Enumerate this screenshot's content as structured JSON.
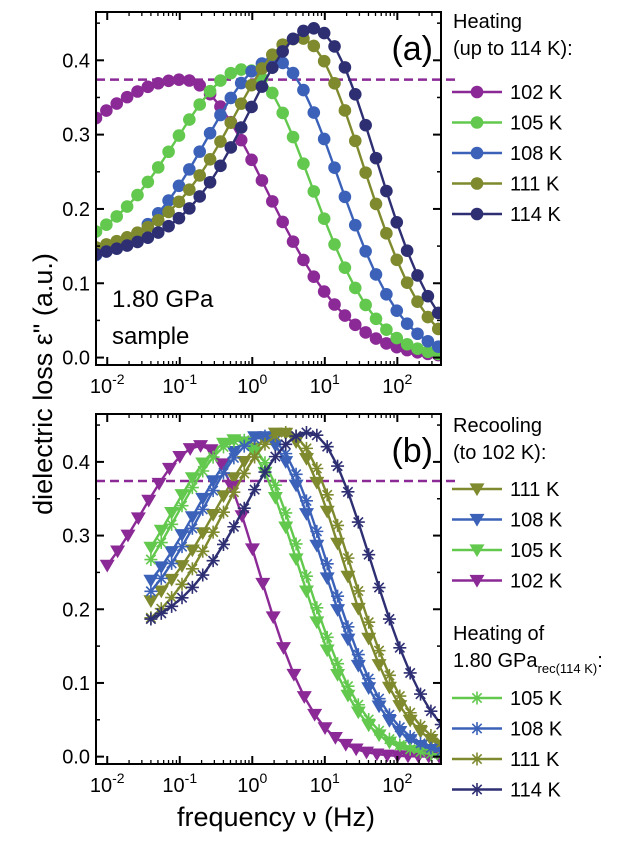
{
  "figure": {
    "ylabel": "dielectric loss ε\" (a.u.)",
    "xlabel": "frequency ν (Hz)"
  },
  "chart_data": [
    {
      "type": "line",
      "panel_label": "(a)",
      "annotation": [
        "1.80 GPa",
        "sample"
      ],
      "xscale": "log",
      "xlim": [
        0.007,
        400
      ],
      "ylim": [
        -0.01,
        0.465
      ],
      "x_ticks": [
        {
          "value": 0.01,
          "base": "10",
          "exp": "-2"
        },
        {
          "value": 0.1,
          "base": "10",
          "exp": "-1"
        },
        {
          "value": 1,
          "base": "10",
          "exp": "0"
        },
        {
          "value": 10,
          "base": "10",
          "exp": "1"
        },
        {
          "value": 100,
          "base": "10",
          "exp": "2"
        }
      ],
      "y_ticks": [
        0.0,
        0.1,
        0.2,
        0.3,
        0.4
      ],
      "y_tick_labels": [
        "0.0",
        "0.1",
        "0.2",
        "0.3",
        "0.4"
      ],
      "reference_line_y": 0.374,
      "reference_color": "#8b2a96",
      "legend_title": [
        "Heating",
        "(up to 114 K):"
      ],
      "legend_position": "right",
      "series": [
        {
          "name": "102 K",
          "marker": "circle",
          "color": "#8b2a96",
          "peak_f": 0.11,
          "peak_y": 0.374,
          "low_f_y": 0.26,
          "sigma": 1.15
        },
        {
          "name": "105 K",
          "marker": "circle",
          "color": "#63c94e",
          "peak_f": 0.8,
          "peak_y": 0.388,
          "low_f_y": 0.17,
          "sigma": 0.9
        },
        {
          "name": "108 K",
          "marker": "circle",
          "color": "#3b62b8",
          "peak_f": 2.0,
          "peak_y": 0.4,
          "low_f_y": 0.155,
          "sigma": 0.88
        },
        {
          "name": "111 K",
          "marker": "circle",
          "color": "#7f8a2e",
          "peak_f": 4.5,
          "peak_y": 0.43,
          "low_f_y": 0.18,
          "sigma": 0.87
        },
        {
          "name": "114 K",
          "marker": "circle",
          "color": "#2e2f73",
          "peak_f": 7.0,
          "peak_y": 0.443,
          "low_f_y": 0.175,
          "sigma": 0.86
        }
      ]
    },
    {
      "type": "line",
      "panel_label": "(b)",
      "xscale": "log",
      "xlim": [
        0.007,
        400
      ],
      "ylim": [
        -0.01,
        0.465
      ],
      "x_ticks": [
        {
          "value": 0.01,
          "base": "10",
          "exp": "-2"
        },
        {
          "value": 0.1,
          "base": "10",
          "exp": "-1"
        },
        {
          "value": 1,
          "base": "10",
          "exp": "0"
        },
        {
          "value": 10,
          "base": "10",
          "exp": "1"
        },
        {
          "value": 100,
          "base": "10",
          "exp": "2"
        }
      ],
      "y_ticks": [
        0.0,
        0.1,
        0.2,
        0.3,
        0.4
      ],
      "y_tick_labels": [
        "0.0",
        "0.1",
        "0.2",
        "0.3",
        "0.4"
      ],
      "reference_line_y": 0.374,
      "reference_color": "#8b2a96",
      "legend_title": [
        "Recooling",
        "(to 102 K):"
      ],
      "legend2_title": "Heating of",
      "legend2_main": "1.80 GPa",
      "legend2_sub": "rec(114 K)",
      "legend2_suffix": ":",
      "legend_position": "right",
      "series": [
        {
          "name": "111 K",
          "marker": "triangle-down",
          "color": "#7f8a2e",
          "peak_f": 2.5,
          "peak_y": 0.44,
          "low_f_y": 0.2,
          "sigma": 0.85,
          "x_start": 0.04
        },
        {
          "name": "108 K",
          "marker": "triangle-down",
          "color": "#3b62b8",
          "peak_f": 1.3,
          "peak_y": 0.435,
          "low_f_y": 0.2,
          "sigma": 0.85,
          "x_start": 0.04
        },
        {
          "name": "105 K",
          "marker": "triangle-down",
          "color": "#63c94e",
          "peak_f": 0.6,
          "peak_y": 0.43,
          "low_f_y": 0.2,
          "sigma": 0.85,
          "x_start": 0.04
        },
        {
          "name": "102 K",
          "marker": "triangle-down",
          "color": "#8b2a96",
          "peak_f": 0.2,
          "peak_y": 0.422,
          "low_f_y": 0.215,
          "sigma": 0.78,
          "x_start": 0.01
        },
        {
          "name": "105 K",
          "group": 2,
          "marker": "asterisk",
          "color": "#63c94e",
          "peak_f": 0.7,
          "peak_y": 0.43,
          "low_f_y": 0.19,
          "sigma": 0.85,
          "x_start": 0.04
        },
        {
          "name": "108 K",
          "group": 2,
          "marker": "asterisk",
          "color": "#3b62b8",
          "peak_f": 1.5,
          "peak_y": 0.435,
          "low_f_y": 0.19,
          "sigma": 0.85,
          "x_start": 0.04
        },
        {
          "name": "111 K",
          "group": 2,
          "marker": "asterisk",
          "color": "#7f8a2e",
          "peak_f": 3.0,
          "peak_y": 0.44,
          "low_f_y": 0.18,
          "sigma": 0.85,
          "x_start": 0.04
        },
        {
          "name": "114 K",
          "group": 2,
          "marker": "asterisk",
          "color": "#2e2f73",
          "peak_f": 6.0,
          "peak_y": 0.44,
          "low_f_y": 0.2,
          "sigma": 0.85,
          "x_start": 0.04
        }
      ]
    }
  ]
}
